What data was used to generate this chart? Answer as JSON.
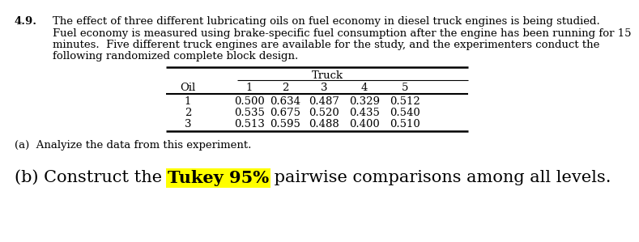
{
  "problem_number": "4.9.",
  "body_line1": "The effect of three different lubricating oils on fuel economy in diesel truck engines is being studied.",
  "body_line2": "Fuel economy is measured using brake-specific fuel consumption after the engine has been running for 15",
  "body_line3": "minutes.  Five different truck engines are available for the study, and the experimenters conduct the",
  "body_line4": "following randomized complete block design.",
  "table_header_group": "Truck",
  "col_headers": [
    "Oil",
    "1",
    "2",
    "3",
    "4",
    "5"
  ],
  "rows": [
    [
      "1",
      "0.500",
      "0.634",
      "0.487",
      "0.329",
      "0.512"
    ],
    [
      "2",
      "0.535",
      "0.675",
      "0.520",
      "0.435",
      "0.540"
    ],
    [
      "3",
      "0.513",
      "0.595",
      "0.488",
      "0.400",
      "0.510"
    ]
  ],
  "part_a": "(a)  Analyize the data from this experiment.",
  "part_b_prefix": "(b) Construct the ",
  "part_b_highlight": "Tukey 95%",
  "part_b_suffix": " pairwise comparisons among all levels.",
  "highlight_color": "#FFFF00",
  "text_color": "#000000",
  "background_color": "#FFFFFF",
  "body_fontsize": 9.5,
  "part_a_fontsize": 9.5,
  "part_b_fontsize": 15,
  "table_fontsize": 9.5,
  "font_family": "DejaVu Serif"
}
